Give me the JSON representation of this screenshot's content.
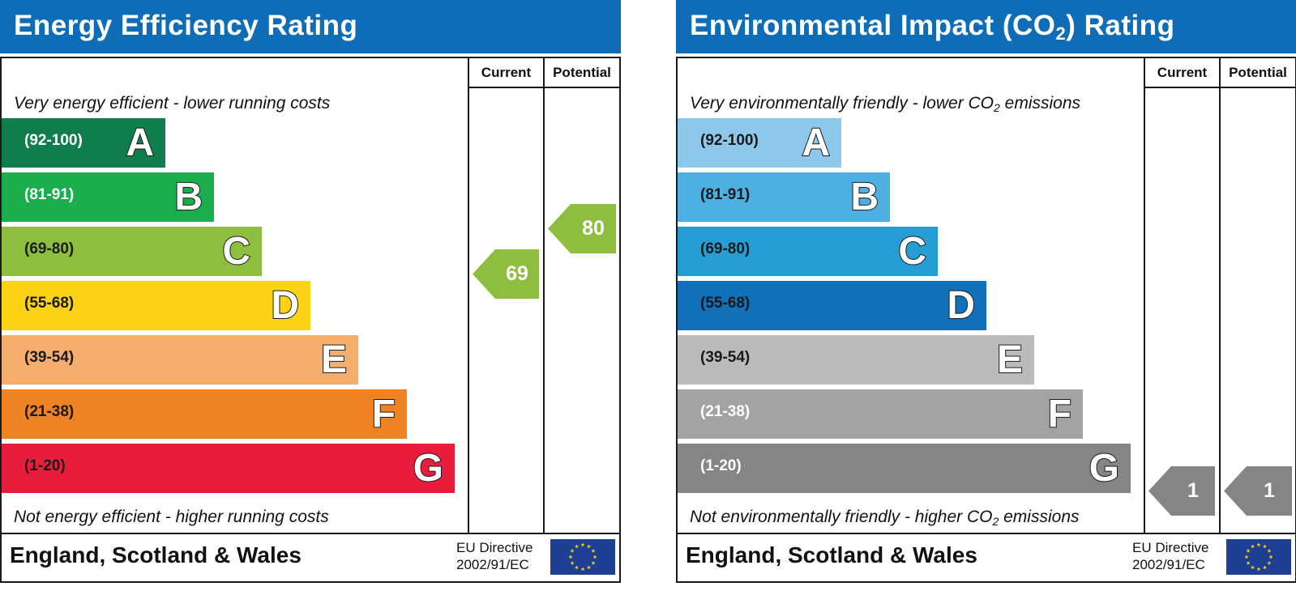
{
  "chart_data": [
    {
      "type": "bar",
      "title": "Energy Efficiency Rating",
      "columns": [
        "Current",
        "Potential"
      ],
      "top_caption": "Very energy efficient - lower running costs",
      "bottom_caption": "Not energy efficient - higher running costs",
      "bands": [
        {
          "letter": "A",
          "range": "(92-100)",
          "color": "#0f7e4c",
          "text_color": "#ffffff"
        },
        {
          "letter": "B",
          "range": "(81-91)",
          "color": "#1cad4e",
          "text_color": "#ffffff"
        },
        {
          "letter": "C",
          "range": "(69-80)",
          "color": "#8dbe3f",
          "text_color": "#1a1a1a"
        },
        {
          "letter": "D",
          "range": "(55-68)",
          "color": "#fcd214",
          "text_color": "#1a1a1a"
        },
        {
          "letter": "E",
          "range": "(39-54)",
          "color": "#f6ae6f",
          "text_color": "#1a1a1a"
        },
        {
          "letter": "F",
          "range": "(21-38)",
          "color": "#ef8323",
          "text_color": "#1a1a1a"
        },
        {
          "letter": "G",
          "range": "(1-20)",
          "color": "#e81d3c",
          "text_color": "#1a1a1a"
        }
      ],
      "current": {
        "value": 69,
        "label": "69",
        "color": "#8dbe3f"
      },
      "potential": {
        "value": 80,
        "label": "80",
        "color": "#8dbe3f"
      },
      "footer": "England, Scotland & Wales",
      "directive": [
        "EU Directive",
        "2002/91/EC"
      ]
    },
    {
      "type": "bar",
      "title": "Environmental Impact (CO",
      "title_sub": "2",
      "title_suffix": ") Rating",
      "columns": [
        "Current",
        "Potential"
      ],
      "top_caption": "Very environmentally friendly - lower CO",
      "top_caption_sub": "2",
      "top_caption_suffix": " emissions",
      "bottom_caption": "Not environmentally friendly - higher CO",
      "bottom_caption_sub": "2",
      "bottom_caption_suffix": " emissions",
      "bands": [
        {
          "letter": "A",
          "range": "(92-100)",
          "color": "#8dc7ea",
          "text_color": "#1a1a1a"
        },
        {
          "letter": "B",
          "range": "(81-91)",
          "color": "#4dafe2",
          "text_color": "#1a1a1a"
        },
        {
          "letter": "C",
          "range": "(69-80)",
          "color": "#279ed3",
          "text_color": "#1a1a1a"
        },
        {
          "letter": "D",
          "range": "(55-68)",
          "color": "#1270b8",
          "text_color": "#1a1a1a"
        },
        {
          "letter": "E",
          "range": "(39-54)",
          "color": "#bbbbbb",
          "text_color": "#1a1a1a"
        },
        {
          "letter": "F",
          "range": "(21-38)",
          "color": "#a3a3a3",
          "text_color": "#ffffff"
        },
        {
          "letter": "G",
          "range": "(1-20)",
          "color": "#858585",
          "text_color": "#ffffff"
        }
      ],
      "current": {
        "value": 1,
        "label": "1",
        "color": "#858585"
      },
      "potential": {
        "value": 1,
        "label": "1",
        "color": "#858585"
      },
      "footer": "England, Scotland & Wales",
      "directive": [
        "EU Directive",
        "2002/91/EC"
      ]
    }
  ]
}
